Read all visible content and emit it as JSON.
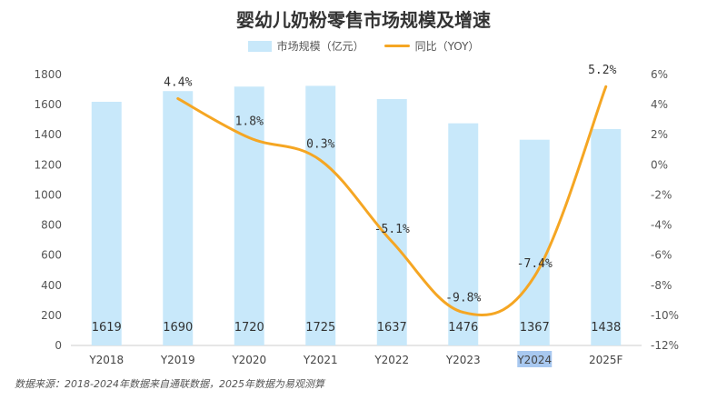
{
  "title": "婴幼儿奶粉零售市场规模及增速",
  "source_note": "数据来源：2018-2024年数据来自通联数据，2025年数据为易观测算",
  "colors": {
    "bar": "#c8e8fa",
    "line": "#f5a623",
    "highlight": "#a8c8f0"
  },
  "chart_data": {
    "type": "bar",
    "categories": [
      "Y2018",
      "Y2019",
      "Y2020",
      "Y2021",
      "Y2022",
      "Y2023",
      "Y2024",
      "2025F"
    ],
    "highlight_category": "Y2024",
    "series": [
      {
        "name": "市场规模（亿元）",
        "type": "bar",
        "axis": "left",
        "values": [
          1619,
          1690,
          1720,
          1725,
          1637,
          1476,
          1367,
          1438
        ],
        "labels": [
          "1619",
          "1690",
          "1720",
          "1725",
          "1637",
          "1476",
          "1367",
          "1438"
        ]
      },
      {
        "name": "同比（YOY）",
        "type": "line",
        "axis": "right",
        "values": [
          null,
          4.4,
          1.8,
          0.3,
          -5.1,
          -9.8,
          -7.4,
          5.2
        ],
        "labels": [
          "",
          "4.4%",
          "1.8%",
          "0.3%",
          "-5.1%",
          "-9.8%",
          "-7.4%",
          "5.2%"
        ]
      }
    ],
    "y_left": {
      "min": 0,
      "max": 1800,
      "step": 200,
      "ticks": [
        "0",
        "200",
        "400",
        "600",
        "800",
        "1000",
        "1200",
        "1400",
        "1600",
        "1800"
      ]
    },
    "y_right": {
      "min": -12,
      "max": 6,
      "step": 2,
      "ticks": [
        "-12%",
        "-10%",
        "-8%",
        "-6%",
        "-4%",
        "-2%",
        "0%",
        "2%",
        "4%",
        "6%"
      ]
    },
    "grid": true,
    "legend_position": "top-center"
  }
}
